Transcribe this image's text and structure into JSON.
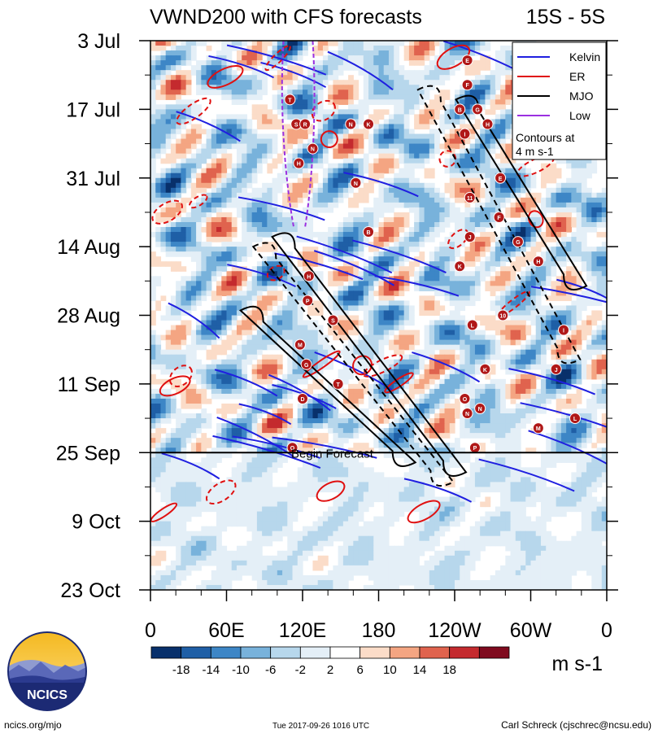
{
  "chart_data": {
    "type": "heatmap",
    "title": "VWND200 with CFS forecasts",
    "latitude_band": "15S - 5S",
    "variable": "200-hPa meridional wind (Hovmoller: longitude vs time)",
    "x_ticks": [
      {
        "lon": 0,
        "label": "0"
      },
      {
        "lon": 60,
        "label": "60E"
      },
      {
        "lon": 120,
        "label": "120E"
      },
      {
        "lon": 180,
        "label": "180"
      },
      {
        "lon": 240,
        "label": "120W"
      },
      {
        "lon": 300,
        "label": "60W"
      },
      {
        "lon": 360,
        "label": "0"
      }
    ],
    "y_ticks": [
      {
        "day": 0,
        "label": "3 Jul"
      },
      {
        "day": 14,
        "label": "17 Jul"
      },
      {
        "day": 28,
        "label": "31 Jul"
      },
      {
        "day": 42,
        "label": "14 Aug"
      },
      {
        "day": 56,
        "label": "28 Aug"
      },
      {
        "day": 70,
        "label": "11 Sep"
      },
      {
        "day": 84,
        "label": "25 Sep"
      },
      {
        "day": 98,
        "label": "9 Oct"
      },
      {
        "day": 112,
        "label": "23 Oct"
      }
    ],
    "xlim": [
      0,
      360
    ],
    "ylim": [
      0,
      112
    ],
    "forecast_start_day": 84,
    "forecast_label": "Begin Forecast",
    "legend": {
      "position": "top-right",
      "entries": [
        {
          "label": "Kelvin",
          "color": "#1f1fe0"
        },
        {
          "label": "ER",
          "color": "#e01010"
        },
        {
          "label": "MJO",
          "color": "#000000"
        },
        {
          "label": "Low",
          "color": "#9b30e0"
        }
      ],
      "note_line1": "Contours at",
      "note_line2": "4 m s-1"
    },
    "colorbar": {
      "levels": [
        "-18",
        "-14",
        "-10",
        "-6",
        "-2",
        "2",
        "6",
        "10",
        "14",
        "18"
      ],
      "colors": [
        "#08306b",
        "#1f5fa6",
        "#3d86c6",
        "#78b2db",
        "#b7d7ec",
        "#e4eff7",
        "#ffffff",
        "#fbdcc8",
        "#f4a582",
        "#e0634e",
        "#c42a2e",
        "#7f0a1e"
      ],
      "units": "m s-1"
    },
    "mjo_bands": [
      {
        "lon_start": 105,
        "lon_end": 240,
        "day_start": 40,
        "day_end": 88,
        "style": "solid"
      },
      {
        "lon_start": 90,
        "lon_end": 230,
        "day_start": 42,
        "day_end": 90,
        "style": "dashed"
      },
      {
        "lon_start": 80,
        "lon_end": 200,
        "day_start": 55,
        "day_end": 86,
        "style": "solid"
      },
      {
        "lon_start": 220,
        "lon_end": 330,
        "day_start": 10,
        "day_end": 65,
        "style": "dashed"
      },
      {
        "lon_start": 250,
        "lon_end": 335,
        "day_start": 12,
        "day_end": 50,
        "style": "solid"
      }
    ],
    "low_band": {
      "lon_start": 105,
      "lon_end": 128,
      "day_start": 0,
      "day_end": 38
    },
    "storm_markers": [
      {
        "lon": 250,
        "day": 4,
        "letter": "E"
      },
      {
        "lon": 250,
        "day": 9,
        "letter": "F"
      },
      {
        "lon": 244,
        "day": 14,
        "letter": "B"
      },
      {
        "lon": 258,
        "day": 14,
        "letter": "G"
      },
      {
        "lon": 266,
        "day": 17,
        "letter": "H"
      },
      {
        "lon": 248,
        "day": 19,
        "letter": "I"
      },
      {
        "lon": 110,
        "day": 12,
        "letter": "T"
      },
      {
        "lon": 115,
        "day": 17,
        "letter": "S"
      },
      {
        "lon": 122,
        "day": 17,
        "letter": "R"
      },
      {
        "lon": 128,
        "day": 22,
        "letter": "N"
      },
      {
        "lon": 117,
        "day": 25,
        "letter": "H"
      },
      {
        "lon": 158,
        "day": 17,
        "letter": "N"
      },
      {
        "lon": 172,
        "day": 17,
        "letter": "K"
      },
      {
        "lon": 162,
        "day": 29,
        "letter": "N"
      },
      {
        "lon": 276,
        "day": 28,
        "letter": "E"
      },
      {
        "lon": 252,
        "day": 32,
        "letter": "11"
      },
      {
        "lon": 275,
        "day": 36,
        "letter": "F"
      },
      {
        "lon": 290,
        "day": 41,
        "letter": "G"
      },
      {
        "lon": 172,
        "day": 39,
        "letter": "B"
      },
      {
        "lon": 252,
        "day": 40,
        "letter": "J"
      },
      {
        "lon": 244,
        "day": 46,
        "letter": "K"
      },
      {
        "lon": 306,
        "day": 45,
        "letter": "H"
      },
      {
        "lon": 125,
        "day": 48,
        "letter": "H"
      },
      {
        "lon": 124,
        "day": 53,
        "letter": "P"
      },
      {
        "lon": 144,
        "day": 57,
        "letter": "S"
      },
      {
        "lon": 118,
        "day": 62,
        "letter": "M"
      },
      {
        "lon": 123,
        "day": 66,
        "letter": "G"
      },
      {
        "lon": 148,
        "day": 70,
        "letter": "T"
      },
      {
        "lon": 120,
        "day": 73,
        "letter": "D"
      },
      {
        "lon": 278,
        "day": 56,
        "letter": "10"
      },
      {
        "lon": 254,
        "day": 58,
        "letter": "L"
      },
      {
        "lon": 326,
        "day": 59,
        "letter": "I"
      },
      {
        "lon": 264,
        "day": 67,
        "letter": "K"
      },
      {
        "lon": 320,
        "day": 67,
        "letter": "J"
      },
      {
        "lon": 248,
        "day": 73,
        "letter": "O"
      },
      {
        "lon": 260,
        "day": 75,
        "letter": "N"
      },
      {
        "lon": 250,
        "day": 76,
        "letter": "N"
      },
      {
        "lon": 335,
        "day": 77,
        "letter": "L"
      },
      {
        "lon": 306,
        "day": 79,
        "letter": "M"
      },
      {
        "lon": 256,
        "day": 83,
        "letter": "P"
      },
      {
        "lon": 112,
        "day": 83,
        "letter": "O"
      }
    ]
  },
  "footer": {
    "left": "ncics.org/mjo",
    "center": "Tue 2017-09-26 1016 UTC",
    "right": "Carl Schreck (cjschrec@ncsu.edu)"
  },
  "logo": {
    "text": "NCICS"
  }
}
